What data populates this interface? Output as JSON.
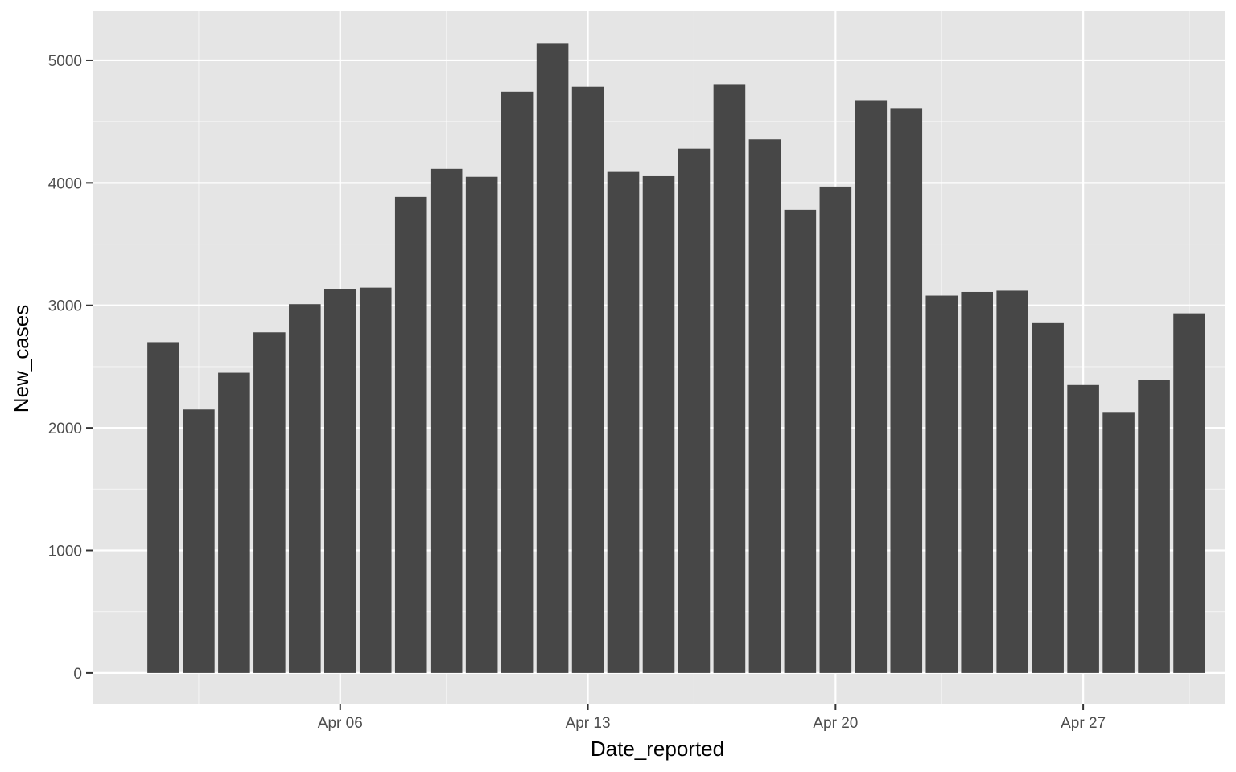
{
  "chart_data": {
    "type": "bar",
    "title": "",
    "xlabel": "Date_reported",
    "ylabel": "New_cases",
    "x_axis_type": "date",
    "dates": [
      "2020-04-01",
      "2020-04-02",
      "2020-04-03",
      "2020-04-04",
      "2020-04-05",
      "2020-04-06",
      "2020-04-07",
      "2020-04-08",
      "2020-04-09",
      "2020-04-10",
      "2020-04-11",
      "2020-04-12",
      "2020-04-13",
      "2020-04-14",
      "2020-04-15",
      "2020-04-16",
      "2020-04-17",
      "2020-04-18",
      "2020-04-19",
      "2020-04-20",
      "2020-04-21",
      "2020-04-22",
      "2020-04-23",
      "2020-04-24",
      "2020-04-25",
      "2020-04-26",
      "2020-04-27",
      "2020-04-28",
      "2020-04-29",
      "2020-04-30"
    ],
    "values": [
      2700,
      2150,
      2450,
      2780,
      3010,
      3130,
      3145,
      3885,
      4115,
      4050,
      4745,
      5135,
      4785,
      4090,
      4055,
      4280,
      4800,
      4355,
      3780,
      3970,
      4675,
      4610,
      3080,
      3110,
      3120,
      2855,
      2350,
      2130,
      2390,
      2935
    ],
    "xlim": [
      "2020-03-30",
      "2020-05-01"
    ],
    "ylim": [
      -250,
      5400
    ],
    "x_ticks": [
      {
        "date": "2020-04-06",
        "label": "Apr 06"
      },
      {
        "date": "2020-04-13",
        "label": "Apr 13"
      },
      {
        "date": "2020-04-20",
        "label": "Apr 20"
      },
      {
        "date": "2020-04-27",
        "label": "Apr 27"
      }
    ],
    "x_minor_ticks": [
      "2020-04-02",
      "2020-04-09",
      "2020-04-16",
      "2020-04-23",
      "2020-04-30"
    ],
    "y_ticks": [
      0,
      1000,
      2000,
      3000,
      4000,
      5000
    ],
    "y_minor_ticks": [
      500,
      1500,
      2500,
      3500,
      4500
    ],
    "grid": true,
    "legend": "none",
    "colors": {
      "panel_background": "#e5e5e5",
      "grid_major": "#ffffff",
      "grid_minor": "#f2f2f2",
      "bar_fill": "#474747",
      "tick_color": "#333333"
    }
  }
}
